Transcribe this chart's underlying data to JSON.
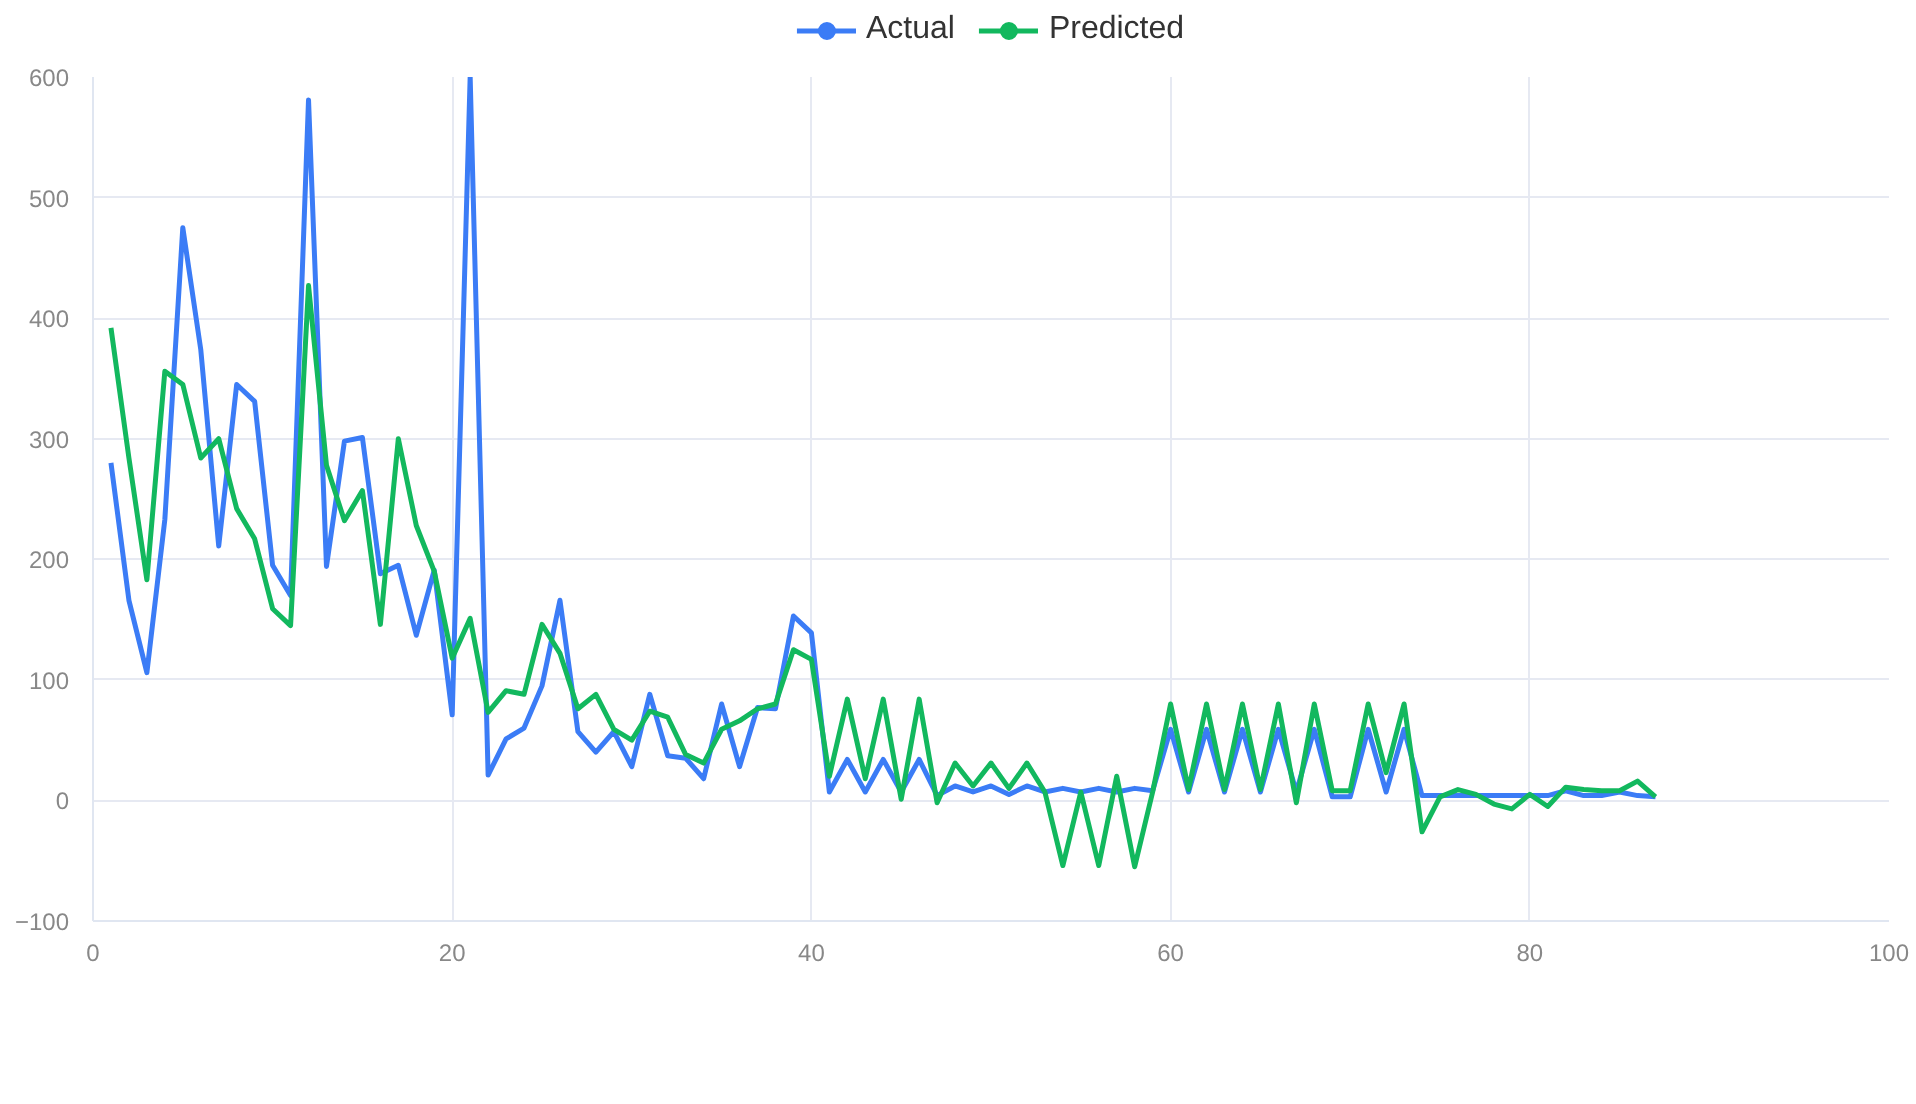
{
  "chart_data": {
    "type": "line",
    "x": [
      1,
      2,
      3,
      4,
      5,
      6,
      7,
      8,
      9,
      10,
      11,
      12,
      13,
      14,
      15,
      16,
      17,
      18,
      19,
      20,
      21,
      22,
      23,
      24,
      25,
      26,
      27,
      28,
      29,
      30,
      31,
      32,
      33,
      34,
      35,
      36,
      37,
      38,
      39,
      40,
      41,
      42,
      43,
      44,
      45,
      46,
      47,
      48,
      49,
      50,
      51,
      52,
      53,
      54,
      55,
      56,
      57,
      58,
      59,
      60,
      61,
      62,
      63,
      64,
      65,
      66,
      67,
      68,
      69,
      70,
      71,
      72,
      73,
      74,
      75,
      76,
      77,
      78,
      79,
      80,
      81,
      82,
      83,
      84,
      85,
      86,
      87
    ],
    "series": [
      {
        "name": "Actual",
        "color": "#3b7cf6",
        "values": [
          280,
          166,
          106,
          233,
          475,
          374,
          211,
          345,
          331,
          195,
          170,
          581,
          194,
          298,
          301,
          188,
          195,
          137,
          191,
          71,
          600,
          21,
          51,
          60,
          95,
          166,
          57,
          40,
          57,
          28,
          88,
          37,
          35,
          18,
          80,
          28,
          77,
          76,
          153,
          139,
          7,
          34,
          7,
          34,
          7,
          34,
          4,
          12,
          7,
          12,
          5,
          12,
          7,
          10,
          7,
          10,
          7,
          10,
          8,
          59,
          7,
          59,
          7,
          59,
          7,
          59,
          7,
          59,
          3,
          3,
          59,
          7,
          59,
          4,
          4,
          4,
          4,
          4,
          4,
          4,
          4,
          8,
          4,
          4,
          7,
          4,
          3
        ]
      },
      {
        "name": "Predicted",
        "color": "#12b85e",
        "values": [
          392,
          284,
          183,
          356,
          345,
          284,
          300,
          242,
          217,
          159,
          145,
          427,
          278,
          232,
          257,
          146,
          300,
          228,
          190,
          118,
          151,
          73,
          91,
          88,
          146,
          122,
          76,
          88,
          59,
          50,
          74,
          69,
          38,
          31,
          59,
          66,
          76,
          80,
          125,
          117,
          20,
          84,
          18,
          84,
          1,
          84,
          -2,
          31,
          12,
          31,
          10,
          31,
          7,
          -54,
          7,
          -54,
          20,
          -55,
          7,
          80,
          9,
          80,
          9,
          80,
          9,
          80,
          -2,
          80,
          8,
          8,
          80,
          23,
          80,
          -26,
          3,
          9,
          5,
          -3,
          -7,
          5,
          -5,
          11,
          9,
          8,
          8,
          16,
          3
        ]
      }
    ],
    "xlim": [
      0,
      100
    ],
    "xticks": [
      0,
      20,
      40,
      60,
      80,
      100
    ],
    "ylim": [
      -100,
      600
    ],
    "yticks": [
      -100,
      0,
      100,
      200,
      300,
      400,
      500,
      600
    ],
    "grid": true,
    "legend": "top",
    "line_style": "solid"
  }
}
